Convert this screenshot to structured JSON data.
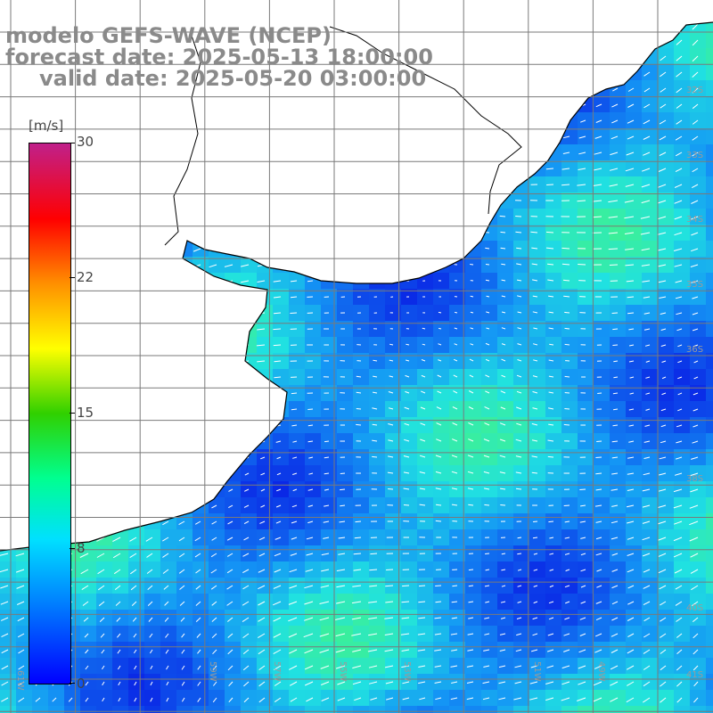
{
  "title": {
    "line1": "modelo GEFS-WAVE (NCEP)",
    "line2": "forecast date: 2025-05-13 18:00:00",
    "line3": "valid date: 2025-05-20 03:00:00"
  },
  "colorbar": {
    "units": "[m/s]",
    "ticks": [
      "30",
      "22",
      "15",
      "8",
      "0"
    ],
    "tick_values": [
      30,
      22,
      15,
      8,
      0
    ],
    "range": [
      0,
      30
    ],
    "colors": [
      "#0000ff",
      "#0080ff",
      "#00e0ff",
      "#00ff90",
      "#30d000",
      "#ffff00",
      "#ff9000",
      "#ff0000",
      "#c0208a"
    ]
  },
  "map": {
    "lat_labels": [
      "32S",
      "33S",
      "34S",
      "35S",
      "36S",
      "38S",
      "40S",
      "41S"
    ],
    "lon_labels": [
      "61W",
      "59W",
      "57W",
      "55W",
      "53W",
      "51W",
      "49W"
    ],
    "colors": {
      "ocean_low": "#0a2ee6",
      "ocean_mid": "#1aa0f0",
      "ocean_high": "#20e8d0",
      "land": "#ffffff",
      "grid": "#7a7a7a",
      "arrow": "#ffffff"
    }
  }
}
